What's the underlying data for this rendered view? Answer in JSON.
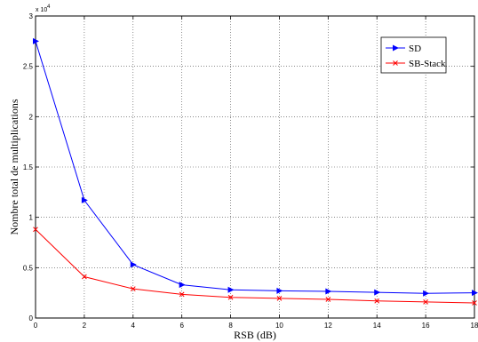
{
  "chart_data": {
    "type": "line",
    "title": "",
    "xlabel": "RSB (dB)",
    "ylabel": "Nombre total de multiplications",
    "xlim": [
      0,
      18
    ],
    "ylim": [
      0,
      3
    ],
    "y_multiplier_label": "x 10",
    "y_multiplier_exponent": "4",
    "x_ticks": [
      "0",
      "2",
      "4",
      "6",
      "8",
      "10",
      "12",
      "14",
      "16",
      "18"
    ],
    "y_ticks": [
      "0",
      "0.5",
      "1",
      "1.5",
      "2",
      "2.5",
      "3"
    ],
    "grid": true,
    "legend_position": "top-right",
    "x": [
      0,
      2,
      4,
      6,
      8,
      10,
      12,
      14,
      16,
      18
    ],
    "series": [
      {
        "name": "SD",
        "color": "#0000ff",
        "marker": "triangle-right",
        "values": [
          2.75,
          1.17,
          0.53,
          0.33,
          0.28,
          0.27,
          0.265,
          0.255,
          0.245,
          0.25
        ]
      },
      {
        "name": "SB-Stack",
        "color": "#ff0000",
        "marker": "x",
        "values": [
          0.88,
          0.41,
          0.29,
          0.235,
          0.205,
          0.195,
          0.185,
          0.17,
          0.16,
          0.15
        ]
      }
    ]
  }
}
